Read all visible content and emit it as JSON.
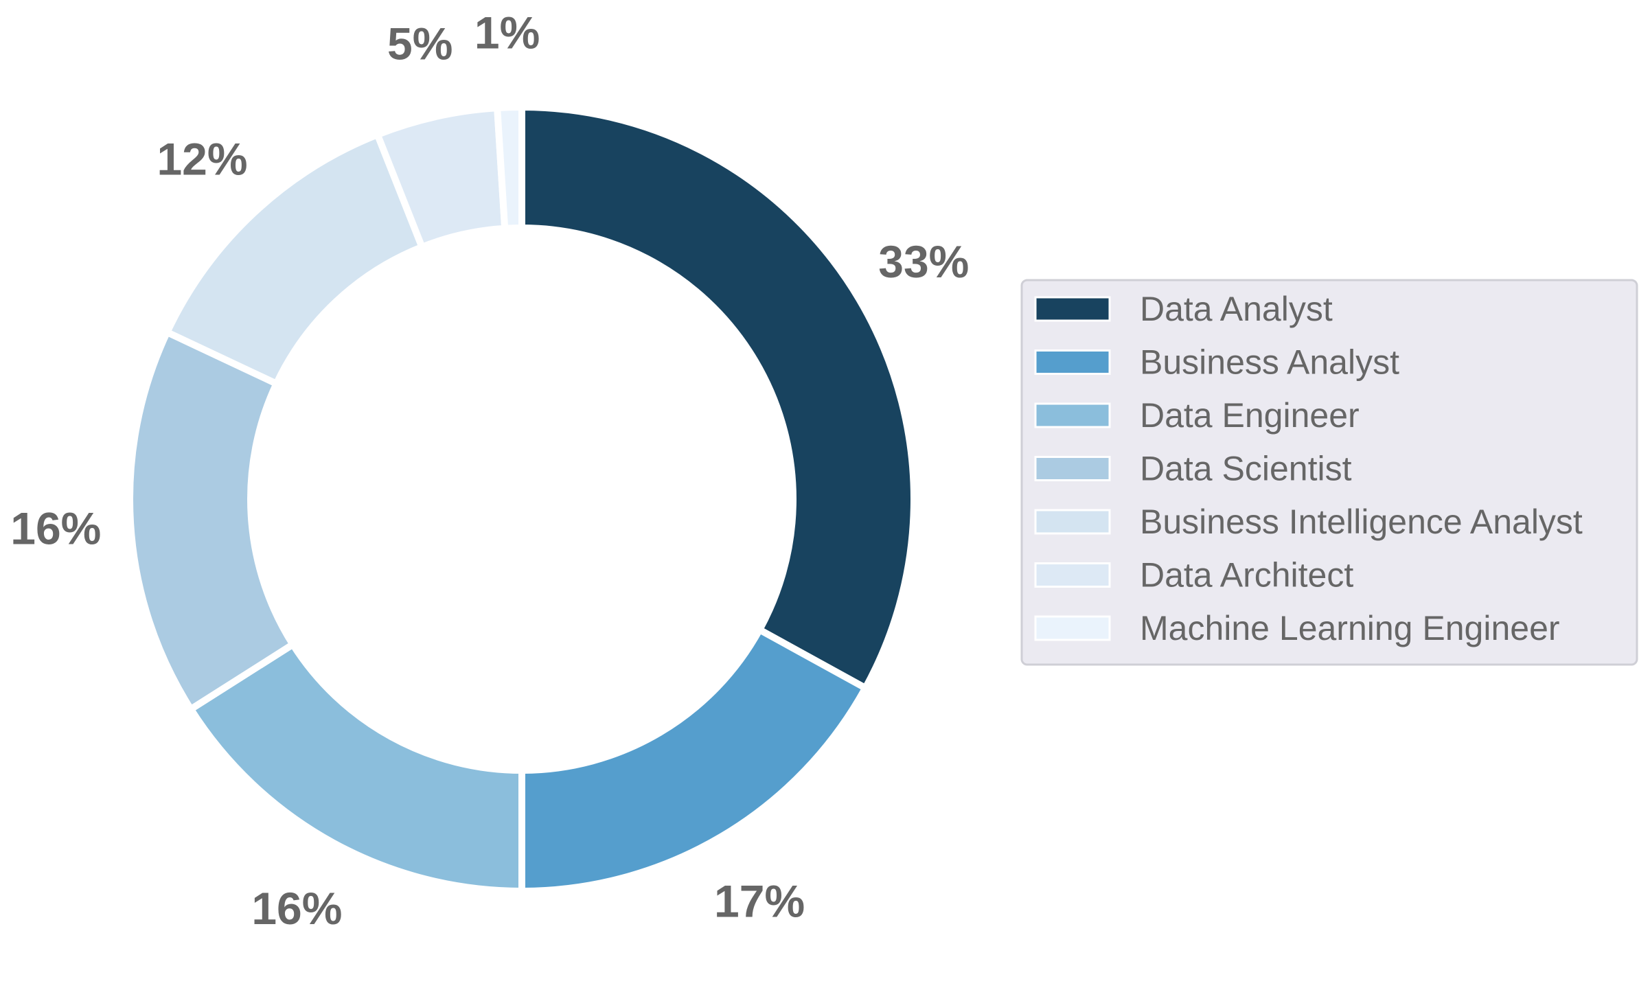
{
  "chart_data": {
    "type": "pie",
    "variant": "donut",
    "title": "",
    "categories": [
      "Data Analyst",
      "Business Analyst",
      "Data Engineer",
      "Data Scientist",
      "Business Intelligence Analyst",
      "Data Architect",
      "Machine Learning Engineer"
    ],
    "values": [
      33,
      17,
      16,
      16,
      12,
      5,
      1
    ],
    "value_labels": [
      "33%",
      "17%",
      "16%",
      "16%",
      "12%",
      "5%",
      "1%"
    ],
    "colors": [
      "#18435f",
      "#559ecd",
      "#8bbedc",
      "#abcbe2",
      "#d4e4f1",
      "#dde9f5",
      "#eaf3fc"
    ],
    "start_angle_deg": 90,
    "direction": "clockwise",
    "legend": {
      "placement": "right",
      "entries": [
        "Data Analyst",
        "Business Analyst",
        "Data Engineer",
        "Data Scientist",
        "Business Intelligence Analyst",
        "Data Architect",
        "Machine Learning Engineer"
      ]
    },
    "label_color": "#666666"
  }
}
